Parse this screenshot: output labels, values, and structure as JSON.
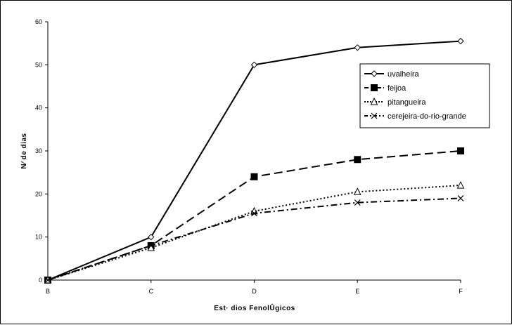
{
  "chart_data": {
    "type": "line",
    "title": "",
    "xlabel": "Est· dios FenolÛgicos",
    "ylabel": "N⁄ de dias",
    "categories": [
      "B",
      "C",
      "D",
      "E",
      "F"
    ],
    "ylim": [
      0,
      60
    ],
    "yticks": [
      0,
      10,
      20,
      30,
      40,
      50,
      60
    ],
    "grid": false,
    "legend_position": "top-right",
    "series": [
      {
        "name": "uvalheira",
        "values": [
          0,
          10,
          50,
          54,
          55.5
        ],
        "marker": "diamond-open",
        "line_style": "solid",
        "color": "#000000"
      },
      {
        "name": "feijoa",
        "values": [
          0,
          8,
          24,
          28,
          30
        ],
        "marker": "square-filled",
        "line_style": "long-dash",
        "color": "#000000"
      },
      {
        "name": "pitangueira",
        "values": [
          0,
          7.5,
          16,
          20.5,
          22
        ],
        "marker": "triangle-open",
        "line_style": "dotted",
        "color": "#000000"
      },
      {
        "name": "cerejeira-do-rio-grande",
        "values": [
          0,
          8,
          15.5,
          18,
          19
        ],
        "marker": "x",
        "line_style": "dash-dot",
        "color": "#000000"
      }
    ]
  }
}
